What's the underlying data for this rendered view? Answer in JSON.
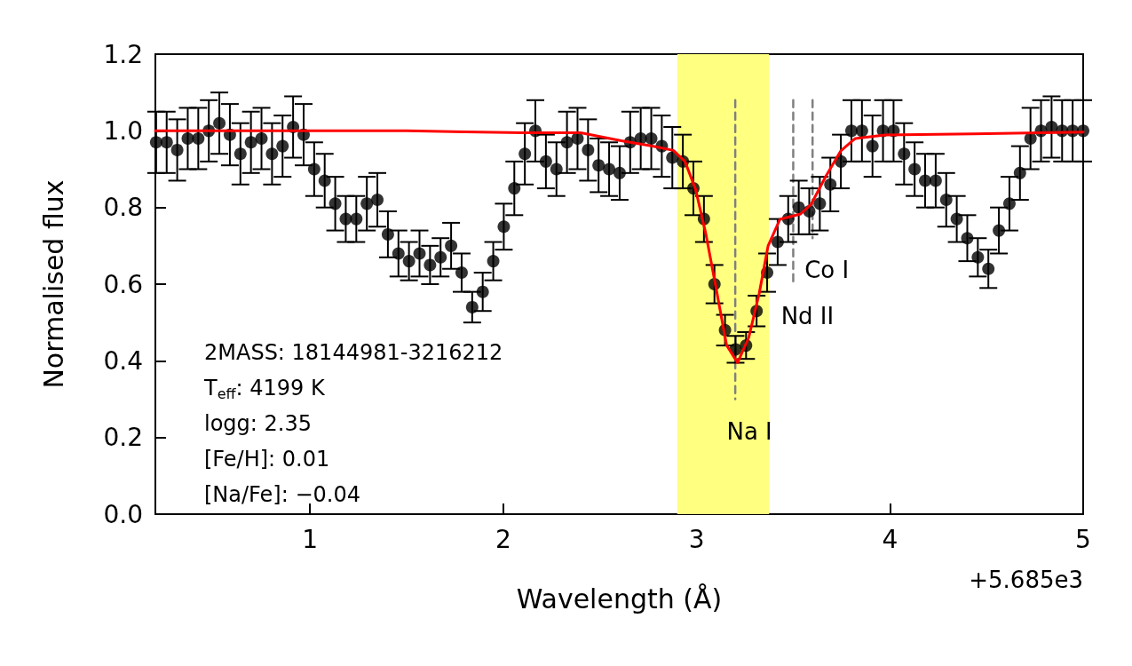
{
  "chart_data": {
    "type": "scatter",
    "xlabel": "Wavelength (Å)",
    "ylabel": "Normalised flux",
    "xlim": [
      0.2,
      5
    ],
    "xticks": [
      1,
      2,
      3,
      4,
      5
    ],
    "ylim": [
      0,
      1.2
    ],
    "yticks": [
      {
        "value": 0,
        "label": "0.0"
      },
      {
        "value": 0.2,
        "label": "0.2"
      },
      {
        "value": 0.4,
        "label": "0.4"
      },
      {
        "value": 0.6,
        "label": "0.6"
      },
      {
        "value": 0.8,
        "label": "0.8"
      },
      {
        "value": 1,
        "label": "1.0"
      },
      {
        "value": 1.2,
        "label": "1.2"
      }
    ],
    "grid": false,
    "marker": "circle",
    "bands": [
      {
        "axis": "x",
        "from": 2.9,
        "to": 3.375,
        "color": "#ffff80"
      }
    ],
    "series": [
      {
        "color": "#000000",
        "x": [
          0.204,
          0.2585,
          0.313,
          0.3675,
          0.422,
          0.4765,
          0.531,
          0.5855,
          0.64,
          0.6945,
          0.749,
          0.8035,
          0.858,
          0.9125,
          0.967,
          1.0215,
          1.076,
          1.1305,
          1.185,
          1.2395,
          1.294,
          1.3485,
          1.403,
          1.4575,
          1.512,
          1.5665,
          1.621,
          1.6755,
          1.73,
          1.7845,
          1.839,
          1.8935,
          1.948,
          2.0025,
          2.057,
          2.1115,
          2.166,
          2.2205,
          2.275,
          2.3295,
          2.384,
          2.4385,
          2.493,
          2.5475,
          2.602,
          2.6565,
          2.711,
          2.7655,
          2.82,
          2.8745,
          2.929,
          2.9835,
          3.038,
          3.0925,
          3.147,
          3.2015,
          3.256,
          3.3105,
          3.365,
          3.4195,
          3.474,
          3.5285,
          3.583,
          3.6375,
          3.692,
          3.7465,
          3.801,
          3.8555,
          3.91,
          3.9645,
          4.019,
          4.0735,
          4.128,
          4.1825,
          4.237,
          4.2915,
          4.346,
          4.4005,
          4.455,
          4.5095,
          4.564,
          4.6185,
          4.673,
          4.7275,
          4.782,
          4.8365,
          4.891,
          4.9455,
          5.0
        ],
        "values": [
          0.97,
          0.97,
          0.95,
          0.98,
          0.98,
          1.0,
          1.02,
          0.99,
          0.94,
          0.97,
          0.98,
          0.94,
          0.96,
          1.01,
          0.99,
          0.9,
          0.87,
          0.81,
          0.77,
          0.77,
          0.81,
          0.82,
          0.73,
          0.68,
          0.66,
          0.68,
          0.65,
          0.67,
          0.7,
          0.63,
          0.54,
          0.58,
          0.66,
          0.75,
          0.85,
          0.94,
          1.0,
          0.92,
          0.9,
          0.97,
          0.98,
          0.95,
          0.91,
          0.9,
          0.89,
          0.97,
          0.98,
          0.98,
          0.96,
          0.93,
          0.92,
          0.85,
          0.77,
          0.6,
          0.48,
          0.43,
          0.44,
          0.53,
          0.63,
          0.71,
          0.77,
          0.8,
          0.79,
          0.81,
          0.86,
          0.92,
          1.0,
          1.0,
          0.96,
          1.0,
          1.0,
          0.94,
          0.9,
          0.87,
          0.87,
          0.82,
          0.77,
          0.72,
          0.67,
          0.64,
          0.74,
          0.81,
          0.89,
          0.98,
          1.0,
          1.01,
          1.0,
          1.0,
          1.0
        ],
        "errors": [
          0.08,
          0.08,
          0.08,
          0.08,
          0.08,
          0.08,
          0.08,
          0.08,
          0.08,
          0.08,
          0.08,
          0.08,
          0.08,
          0.08,
          0.08,
          0.07,
          0.07,
          0.07,
          0.06,
          0.06,
          0.07,
          0.07,
          0.06,
          0.06,
          0.05,
          0.06,
          0.05,
          0.05,
          0.06,
          0.05,
          0.04,
          0.05,
          0.05,
          0.06,
          0.07,
          0.08,
          0.08,
          0.07,
          0.07,
          0.08,
          0.08,
          0.08,
          0.07,
          0.07,
          0.07,
          0.08,
          0.08,
          0.08,
          0.08,
          0.08,
          0.07,
          0.07,
          0.06,
          0.05,
          0.04,
          0.035,
          0.035,
          0.04,
          0.05,
          0.06,
          0.06,
          0.07,
          0.06,
          0.07,
          0.07,
          0.07,
          0.08,
          0.08,
          0.08,
          0.08,
          0.08,
          0.08,
          0.07,
          0.07,
          0.07,
          0.07,
          0.06,
          0.06,
          0.05,
          0.05,
          0.06,
          0.07,
          0.07,
          0.08,
          0.08,
          0.08,
          0.08,
          0.08,
          0.08
        ]
      },
      {
        "type": "line",
        "color": "#ff0000",
        "marker": "none",
        "x": [
          0.2,
          1.5,
          2.1,
          2.4,
          2.61,
          2.765,
          2.88,
          2.94,
          2.995,
          3.048,
          3.1,
          3.155,
          3.212,
          3.27,
          3.324,
          3.37,
          3.431,
          3.538,
          3.592,
          3.668,
          3.745,
          3.806,
          3.821,
          3.975,
          4.43,
          5.0
        ],
        "values": [
          1.0,
          1.0,
          0.995,
          0.995,
          0.974,
          0.961,
          0.949,
          0.92,
          0.847,
          0.731,
          0.592,
          0.441,
          0.395,
          0.461,
          0.576,
          0.7,
          0.769,
          0.783,
          0.808,
          0.881,
          0.947,
          0.974,
          0.98,
          0.989,
          0.992,
          0.997
        ]
      },
      {
        "type": "line",
        "color": "#808080",
        "marker": "none",
        "line_style": "dashed",
        "x": [
          3.2,
          3.2
        ],
        "values": [
          1.08,
          0.3
        ]
      },
      {
        "type": "line",
        "color": "#808080",
        "marker": "none",
        "line_style": "dashed",
        "x": [
          3.5,
          3.5
        ],
        "values": [
          1.08,
          0.6
        ]
      },
      {
        "type": "line",
        "color": "#808080",
        "marker": "none",
        "line_style": "dashed",
        "x": [
          3.6,
          3.6
        ],
        "values": [
          1.08,
          0.72
        ]
      }
    ],
    "annotations": [
      "2MASS: 18144981-3216212",
      "T$_{eff}$: 4199 K",
      "logg: 2.35",
      "[Fe/H]: 0.01",
      "[Na/Fe]: −0.04",
      "+5.685e3",
      "Na I",
      "Nd II",
      "Co I"
    ]
  }
}
